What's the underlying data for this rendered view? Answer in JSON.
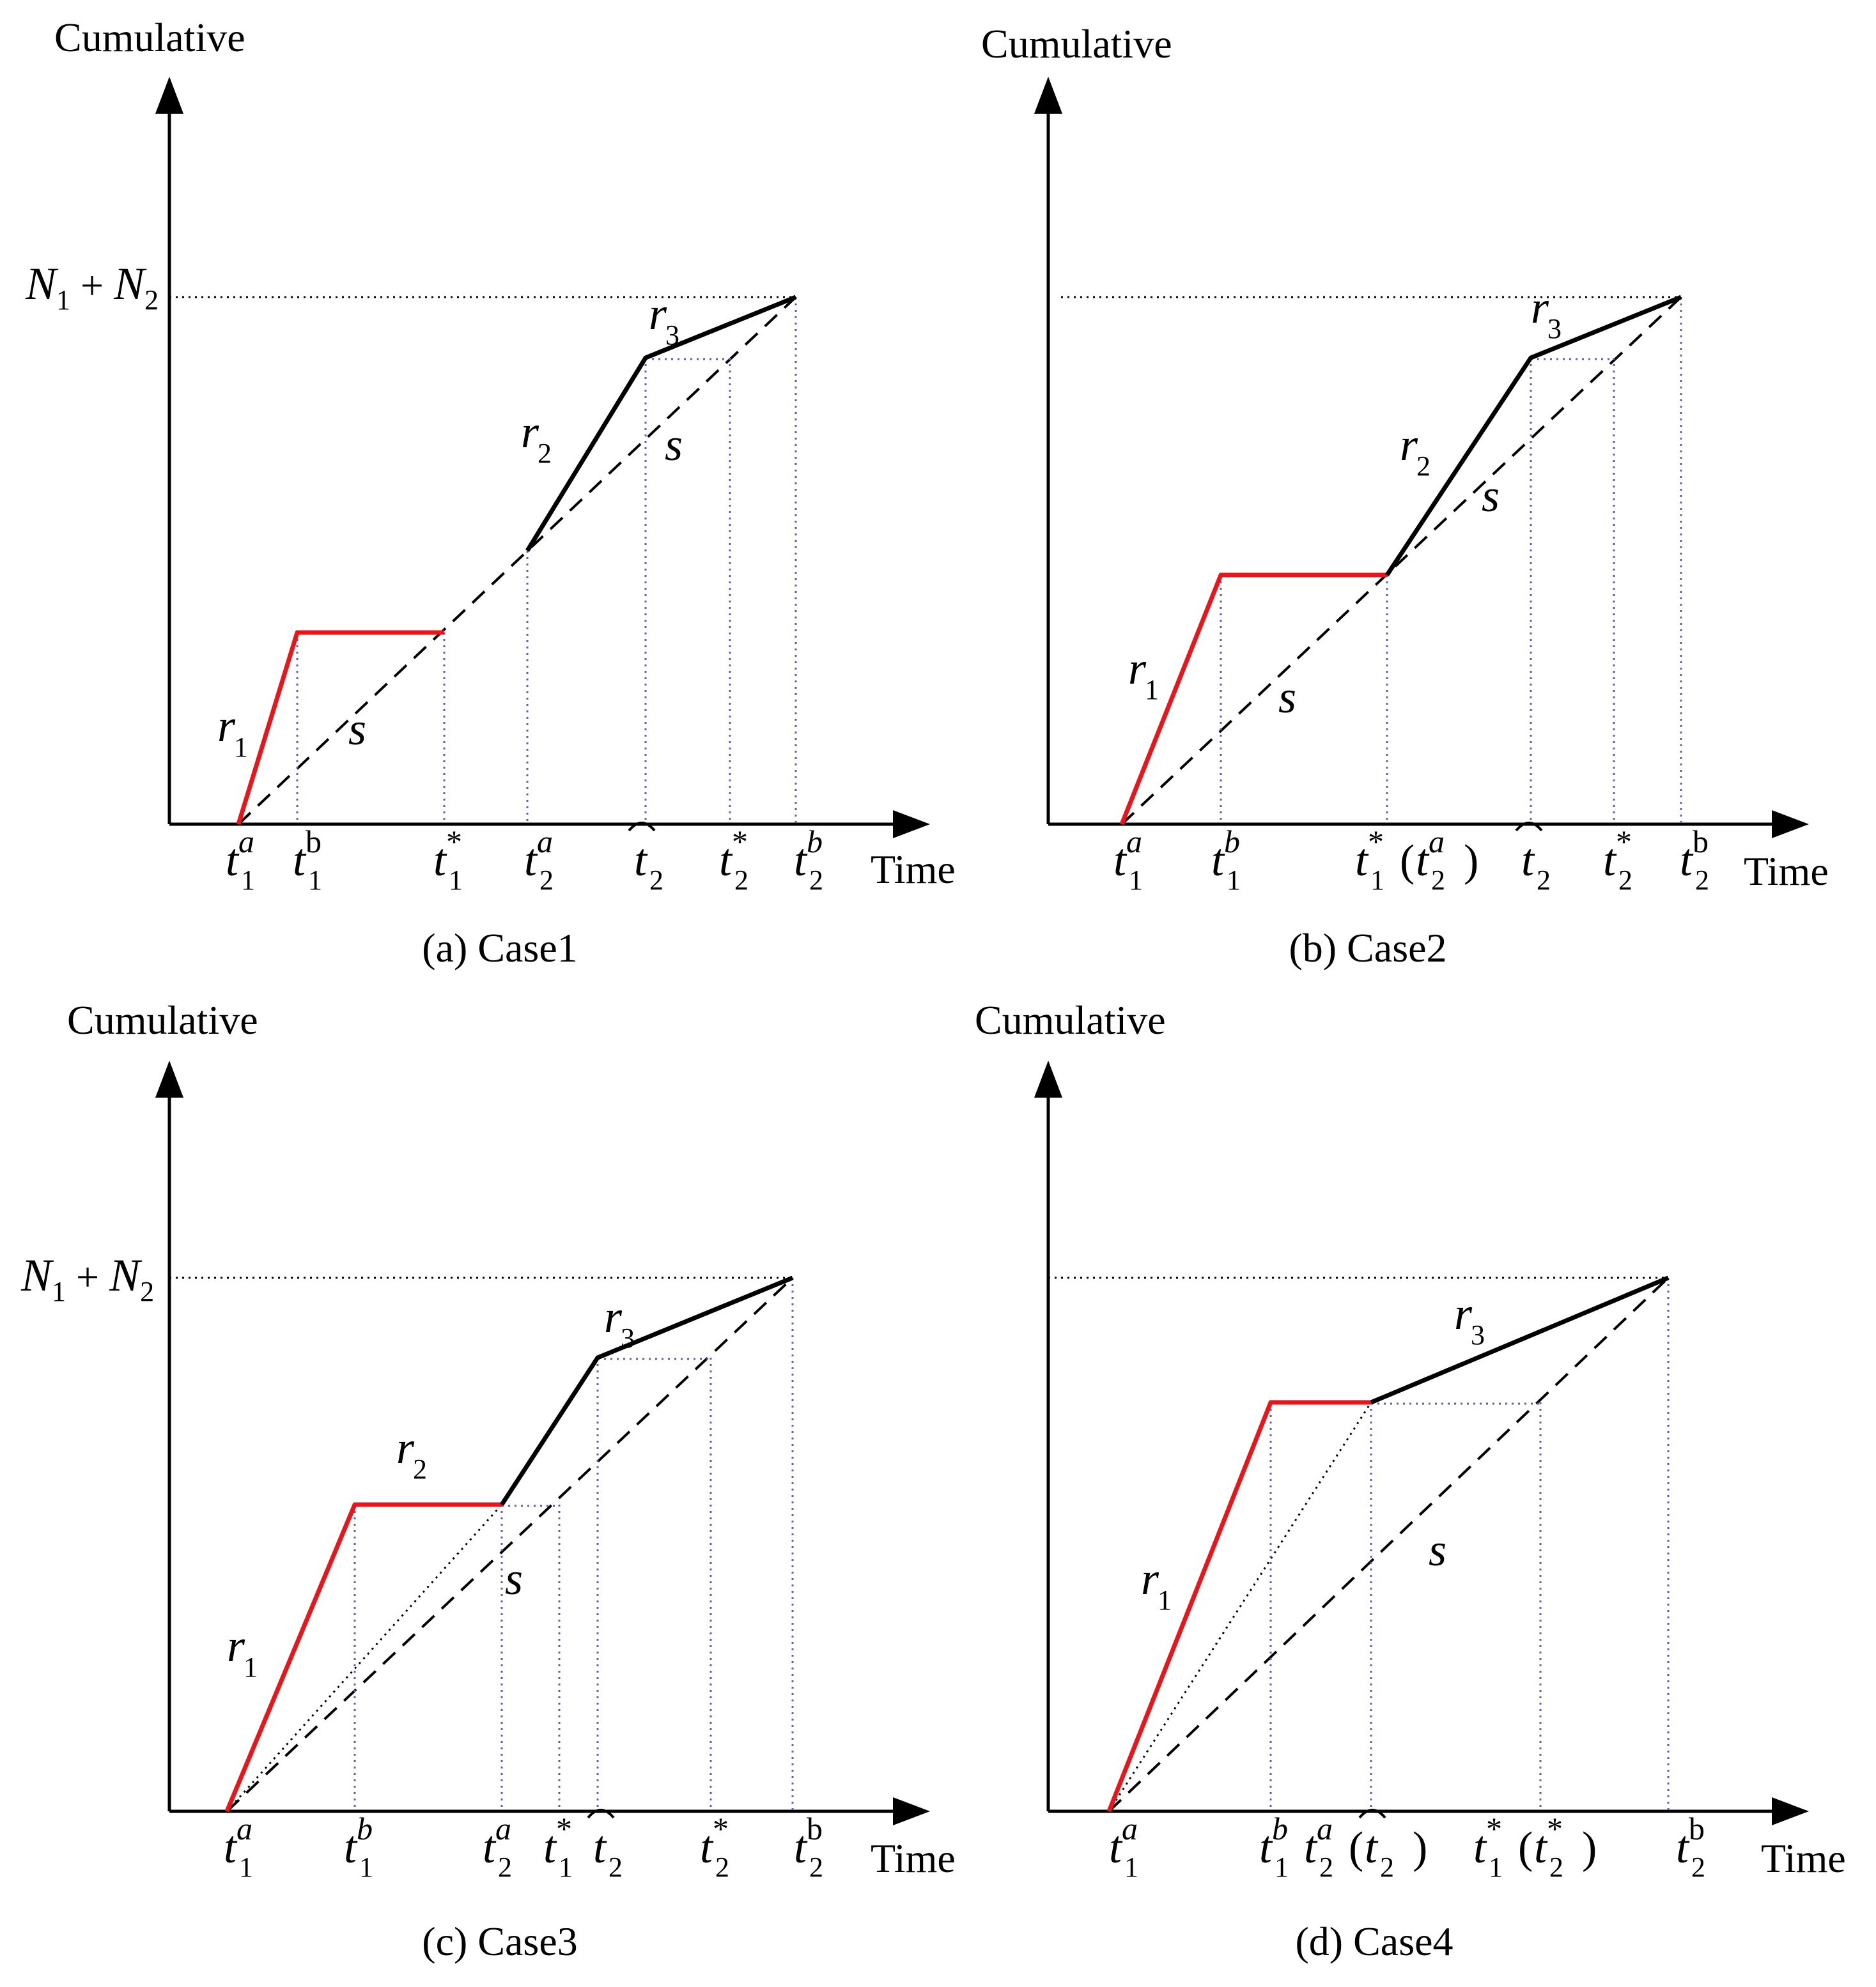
{
  "figure": {
    "y_axis_label": "Cumulative",
    "x_axis_label": "Time",
    "level_label": {
      "n1": "N",
      "n1_sub": "1",
      "plus": "+",
      "n2": "N",
      "n2_sub": "2"
    },
    "line_label": "s",
    "rate_symbol": "r",
    "panels": [
      {
        "id": "a",
        "caption": "(a) Case1",
        "rate_labels": [
          {
            "sub": "1"
          },
          {
            "sub": "2"
          },
          {
            "sub": "3"
          }
        ],
        "ticks": [
          {
            "base": "t",
            "sub": "1",
            "sup": "a",
            "sup_style": "italic"
          },
          {
            "base": "t",
            "sub": "1",
            "sup": "b",
            "sup_style": "normal"
          },
          {
            "base": "t",
            "sub": "1",
            "sup": "*",
            "sup_style": "normal"
          },
          {
            "base": "t",
            "sub": "2",
            "sup": "a",
            "sup_style": "italic"
          },
          {
            "base": "t",
            "sub": "2",
            "sup": "",
            "hat": true
          },
          {
            "base": "t",
            "sub": "2",
            "sup": "*",
            "sup_style": "normal"
          },
          {
            "base": "t",
            "sub": "2",
            "sup": "b",
            "sup_style": "italic"
          }
        ]
      },
      {
        "id": "b",
        "caption": "(b) Case2",
        "rate_labels": [
          {
            "sub": "1"
          },
          {
            "sub": "2"
          },
          {
            "sub": "3"
          }
        ],
        "ticks": [
          {
            "base": "t",
            "sub": "1",
            "sup": "a",
            "sup_style": "italic"
          },
          {
            "base": "t",
            "sub": "1",
            "sup": "b",
            "sup_style": "italic"
          },
          {
            "base": "t",
            "sub": "1",
            "sup": "*",
            "sup_style": "normal",
            "paren": {
              "base": "t",
              "sub": "2",
              "sup": "a",
              "sup_style": "italic"
            }
          },
          {
            "base": "t",
            "sub": "2",
            "sup": "",
            "hat": true
          },
          {
            "base": "t",
            "sub": "2",
            "sup": "*",
            "sup_style": "normal"
          },
          {
            "base": "t",
            "sub": "2",
            "sup": "b",
            "sup_style": "normal"
          }
        ]
      },
      {
        "id": "c",
        "caption": "(c) Case3",
        "rate_labels": [
          {
            "sub": "1"
          },
          {
            "sub": "2"
          },
          {
            "sub": "3"
          }
        ],
        "ticks": [
          {
            "base": "t",
            "sub": "1",
            "sup": "a",
            "sup_style": "italic"
          },
          {
            "base": "t",
            "sub": "1",
            "sup": "b",
            "sup_style": "italic"
          },
          {
            "base": "t",
            "sub": "2",
            "sup": "a",
            "sup_style": "italic"
          },
          {
            "base": "t",
            "sub": "1",
            "sup": "*",
            "sup_style": "normal"
          },
          {
            "base": "t",
            "sub": "2",
            "sup": "",
            "hat": true
          },
          {
            "base": "t",
            "sub": "2",
            "sup": "*",
            "sup_style": "normal"
          },
          {
            "base": "t",
            "sub": "2",
            "sup": "b",
            "sup_style": "normal"
          }
        ]
      },
      {
        "id": "d",
        "caption": "(d) Case4",
        "rate_labels": [
          {
            "sub": "1"
          },
          {
            "sub": "3"
          }
        ],
        "ticks": [
          {
            "base": "t",
            "sub": "1",
            "sup": "a",
            "sup_style": "italic"
          },
          {
            "base": "t",
            "sub": "1",
            "sup": "b",
            "sup_style": "italic"
          },
          {
            "base": "t",
            "sub": "2",
            "sup": "a",
            "sup_style": "italic",
            "paren": {
              "base": "t",
              "sub": "2",
              "sup": "",
              "hat": true
            }
          },
          {
            "base": "t",
            "sub": "1",
            "sup": "*",
            "sup_style": "normal",
            "paren": {
              "base": "t",
              "sub": "2",
              "sup": "*",
              "sup_style": "normal"
            }
          },
          {
            "base": "t",
            "sub": "2",
            "sup": "b",
            "sup_style": "normal"
          }
        ]
      }
    ]
  }
}
